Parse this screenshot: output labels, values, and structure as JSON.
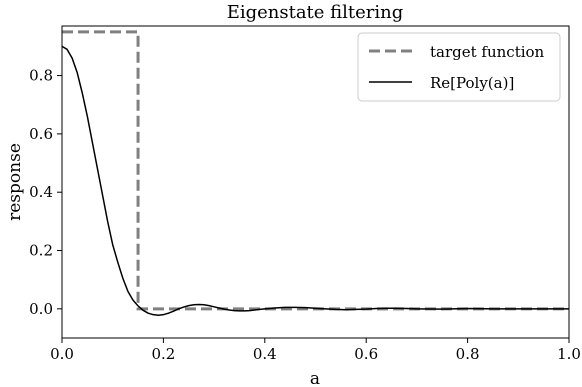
{
  "chart_data": {
    "type": "line",
    "title": "Eigenstate filtering",
    "xlabel": "a",
    "ylabel": "response",
    "xlim": [
      0.0,
      1.0
    ],
    "ylim": [
      -0.1,
      0.97
    ],
    "x_ticks": [
      "0.0",
      "0.2",
      "0.4",
      "0.6",
      "0.8",
      "1.0"
    ],
    "y_ticks": [
      "0.0",
      "0.2",
      "0.4",
      "0.6",
      "0.8"
    ],
    "grid": false,
    "legend_position": "top-right",
    "series": [
      {
        "name": "target function",
        "style": "dashed",
        "color": "#808080",
        "x": [
          0.0,
          0.15,
          0.15,
          1.0
        ],
        "y": [
          0.95,
          0.95,
          0.0,
          0.0
        ]
      },
      {
        "name": "Re[Poly(a)]",
        "style": "solid",
        "color": "#000000",
        "x": [
          0.0,
          0.01,
          0.02,
          0.03,
          0.04,
          0.05,
          0.06,
          0.07,
          0.08,
          0.09,
          0.1,
          0.11,
          0.12,
          0.13,
          0.14,
          0.15,
          0.16,
          0.17,
          0.18,
          0.19,
          0.2,
          0.21,
          0.22,
          0.23,
          0.24,
          0.25,
          0.26,
          0.27,
          0.28,
          0.29,
          0.3,
          0.31,
          0.32,
          0.33,
          0.34,
          0.35,
          0.36,
          0.37,
          0.38,
          0.39,
          0.4,
          0.42,
          0.44,
          0.46,
          0.48,
          0.5,
          0.52,
          0.54,
          0.56,
          0.58,
          0.6,
          0.62,
          0.64,
          0.66,
          0.68,
          0.7,
          0.75,
          0.8,
          0.85,
          0.9,
          0.95,
          1.0
        ],
        "y": [
          0.9,
          0.89,
          0.86,
          0.81,
          0.74,
          0.66,
          0.57,
          0.48,
          0.39,
          0.3,
          0.22,
          0.16,
          0.105,
          0.06,
          0.03,
          0.01,
          -0.005,
          -0.015,
          -0.02,
          -0.022,
          -0.02,
          -0.015,
          -0.008,
          0.0,
          0.006,
          0.011,
          0.014,
          0.015,
          0.014,
          0.011,
          0.007,
          0.003,
          -0.001,
          -0.004,
          -0.006,
          -0.007,
          -0.007,
          -0.006,
          -0.004,
          -0.002,
          0.0,
          0.003,
          0.005,
          0.005,
          0.004,
          0.002,
          0.0,
          -0.002,
          -0.003,
          -0.002,
          -0.001,
          0.001,
          0.002,
          0.002,
          0.001,
          0.0,
          -0.001,
          0.001,
          0.0,
          0.0,
          0.0,
          0.0
        ]
      }
    ]
  }
}
